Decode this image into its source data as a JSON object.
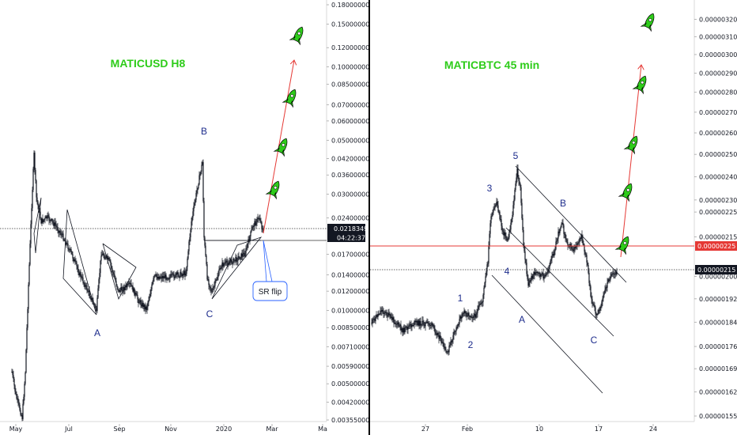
{
  "colors": {
    "candle": "#131722",
    "accent_green": "#2ecc1a",
    "target_arrow": "#e53935",
    "wave_label": "#1d2c8c",
    "divider": "#000000",
    "price_tag_red": "#e53935"
  },
  "chart_data": [
    {
      "type": "candlestick",
      "title": "MATICUSD H8",
      "y_scale": "log",
      "ylim": [
        0.00355,
        0.18
      ],
      "y_ticks": [
        "0.18000000",
        "0.15000000",
        "0.12000000",
        "0.10000000",
        "0.08500000",
        "0.07000000",
        "0.06000000",
        "0.05000000",
        "0.04200000",
        "0.03600000",
        "0.03000000",
        "0.02400000",
        "0.01700000",
        "0.01400000",
        "0.01200000",
        "0.01000000",
        "0.00850000",
        "0.00710000",
        "0.00590000",
        "0.00500000",
        "0.00420000",
        "0.00355000"
      ],
      "x_ticks": [
        "May",
        "Jul",
        "Sep",
        "Nov",
        "2020",
        "Mar",
        "Ma"
      ],
      "last_price": "0.02183497",
      "countdown": "04:22:37",
      "wave_labels": [
        "A",
        "B",
        "C"
      ],
      "annotations": [
        "SR flip"
      ],
      "icons": [
        "rocket-icon",
        "rocket-icon",
        "rocket-icon",
        "rocket-icon"
      ]
    },
    {
      "type": "candlestick",
      "title": "MATICBTC 45 min",
      "y_scale": "log",
      "ylim": [
        1.55e-06,
        3.22e-06
      ],
      "y_ticks": [
        "0.00000320",
        "0.00000310",
        "0.00000300",
        "0.00000290",
        "0.00000280",
        "0.00000270",
        "0.00000260",
        "0.00000250",
        "0.00000240",
        "0.00000230",
        "0.00000225",
        "0.00000215",
        "0.00000200",
        "0.00000192",
        "0.00000184",
        "0.00000176",
        "0.00000169",
        "0.00000162",
        "0.00000155"
      ],
      "x_ticks": [
        "27",
        "Feb",
        "10",
        "17",
        "24"
      ],
      "resistance_price": "0.00000225",
      "last_price": "0.00000215",
      "wave_labels": [
        "1",
        "2",
        "3",
        "4",
        "5",
        "A",
        "B",
        "C"
      ],
      "icons": [
        "rocket-icon",
        "rocket-icon",
        "rocket-icon",
        "rocket-icon",
        "rocket-icon",
        "rocket-icon"
      ]
    }
  ]
}
